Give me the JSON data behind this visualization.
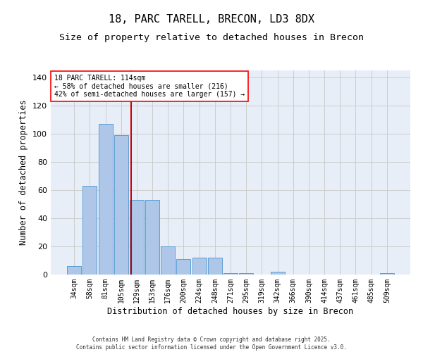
{
  "title1": "18, PARC TARELL, BRECON, LD3 8DX",
  "title2": "Size of property relative to detached houses in Brecon",
  "xlabel": "Distribution of detached houses by size in Brecon",
  "ylabel": "Number of detached properties",
  "bins": [
    "34sqm",
    "58sqm",
    "81sqm",
    "105sqm",
    "129sqm",
    "153sqm",
    "176sqm",
    "200sqm",
    "224sqm",
    "248sqm",
    "271sqm",
    "295sqm",
    "319sqm",
    "342sqm",
    "366sqm",
    "390sqm",
    "414sqm",
    "437sqm",
    "461sqm",
    "485sqm",
    "509sqm"
  ],
  "values": [
    6,
    63,
    107,
    99,
    53,
    53,
    20,
    11,
    12,
    12,
    1,
    1,
    0,
    2,
    0,
    0,
    0,
    0,
    0,
    0,
    1
  ],
  "bar_color": "#aec6e8",
  "bar_edge_color": "#5a9fd4",
  "vline_x": 3.65,
  "vline_color": "#cc0000",
  "annotation_text": "18 PARC TARELL: 114sqm\n← 58% of detached houses are smaller (216)\n42% of semi-detached houses are larger (157) →",
  "ylim": [
    0,
    145
  ],
  "grid_color": "#cccccc",
  "bg_color": "#e8eef8",
  "footer_text": "Contains HM Land Registry data © Crown copyright and database right 2025.\nContains public sector information licensed under the Open Government Licence v3.0.",
  "title_fontsize": 11,
  "subtitle_fontsize": 9.5,
  "tick_fontsize": 7,
  "ylabel_fontsize": 8.5,
  "xlabel_fontsize": 8.5,
  "footer_fontsize": 5.5,
  "annotation_fontsize": 7
}
